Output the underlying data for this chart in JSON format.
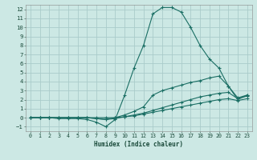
{
  "xlabel": "Humidex (Indice chaleur)",
  "bg_color": "#cce8e4",
  "grid_color": "#aaccca",
  "line_color": "#1a6e64",
  "xlim": [
    -0.5,
    23.5
  ],
  "ylim": [
    -1.5,
    12.5
  ],
  "xticks": [
    0,
    1,
    2,
    3,
    4,
    5,
    6,
    7,
    8,
    9,
    10,
    11,
    12,
    13,
    14,
    15,
    16,
    17,
    18,
    19,
    20,
    21,
    22,
    23
  ],
  "yticks": [
    -1,
    0,
    1,
    2,
    3,
    4,
    5,
    6,
    7,
    8,
    9,
    10,
    11,
    12
  ],
  "lines": [
    {
      "x": [
        0,
        1,
        2,
        3,
        4,
        5,
        6,
        7,
        8,
        9,
        10,
        11,
        12,
        13,
        14,
        15,
        16,
        17,
        18,
        19,
        20,
        21,
        22,
        23
      ],
      "y": [
        0,
        0,
        0,
        -0.1,
        -0.1,
        -0.1,
        -0.2,
        -0.5,
        -1.0,
        -0.2,
        2.5,
        5.5,
        8.0,
        11.5,
        12.2,
        12.2,
        11.7,
        10.0,
        8.0,
        6.5,
        5.5,
        3.5,
        2.0,
        2.5
      ]
    },
    {
      "x": [
        0,
        1,
        2,
        3,
        4,
        5,
        6,
        7,
        8,
        9,
        10,
        11,
        12,
        13,
        14,
        15,
        16,
        17,
        18,
        19,
        20,
        21,
        22,
        23
      ],
      "y": [
        0,
        0,
        0,
        0,
        0,
        0,
        0,
        -0.1,
        -0.2,
        0.0,
        0.3,
        0.7,
        1.2,
        2.5,
        3.0,
        3.3,
        3.6,
        3.9,
        4.1,
        4.4,
        4.6,
        3.5,
        2.2,
        2.5
      ]
    },
    {
      "x": [
        0,
        1,
        2,
        3,
        4,
        5,
        6,
        7,
        8,
        9,
        10,
        11,
        12,
        13,
        14,
        15,
        16,
        17,
        18,
        19,
        20,
        21,
        22,
        23
      ],
      "y": [
        0,
        0,
        0,
        0,
        0,
        0,
        0,
        -0.1,
        -0.2,
        -0.1,
        0.1,
        0.3,
        0.5,
        0.8,
        1.1,
        1.4,
        1.7,
        2.0,
        2.3,
        2.5,
        2.7,
        2.8,
        2.1,
        2.4
      ]
    },
    {
      "x": [
        0,
        1,
        2,
        3,
        4,
        5,
        6,
        7,
        8,
        9,
        10,
        11,
        12,
        13,
        14,
        15,
        16,
        17,
        18,
        19,
        20,
        21,
        22,
        23
      ],
      "y": [
        0,
        0,
        0,
        0,
        0,
        0,
        0,
        0,
        0,
        0,
        0.1,
        0.2,
        0.4,
        0.6,
        0.8,
        1.0,
        1.2,
        1.4,
        1.6,
        1.8,
        2.0,
        2.1,
        1.9,
        2.1
      ]
    }
  ]
}
